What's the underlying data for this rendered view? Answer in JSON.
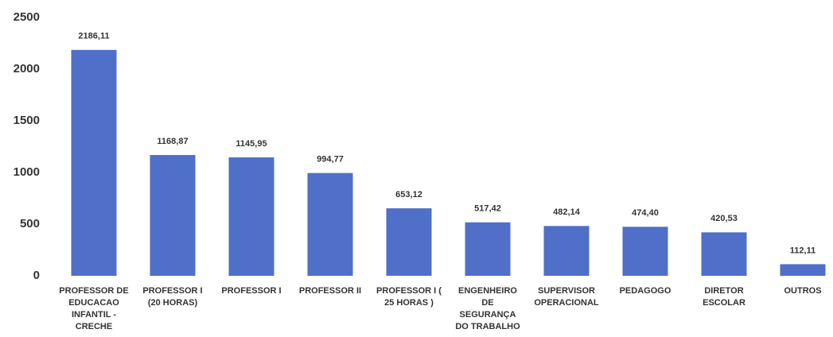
{
  "chart_data": {
    "type": "bar",
    "categories": [
      "PROFESSOR DE\nEDUCACAO\nINFANTIL -\nCRECHE",
      "PROFESSOR I\n(20 HORAS)",
      "PROFESSOR I",
      "PROFESSOR II",
      "PROFESSOR I (\n25 HORAS )",
      "ENGENHEIRO\nDE\nSEGURANÇA\nDO TRABALHO",
      "SUPERVISOR\nOPERACIONAL",
      "PEDAGOGO",
      "DIRETOR\nESCOLAR",
      "OUTROS"
    ],
    "values": [
      2186.11,
      1168.87,
      1145.95,
      994.77,
      653.12,
      517.42,
      482.14,
      474.4,
      420.53,
      112.11
    ],
    "value_labels": [
      "2186,11",
      "1168,87",
      "1145,95",
      "994,77",
      "653,12",
      "517,42",
      "482,14",
      "474,40",
      "420,53",
      "112,11"
    ],
    "color": "#4f6fc8",
    "ylim": [
      0,
      2500
    ],
    "yticks": [
      0,
      500,
      1000,
      1500,
      2000,
      2500
    ],
    "grid": false
  }
}
